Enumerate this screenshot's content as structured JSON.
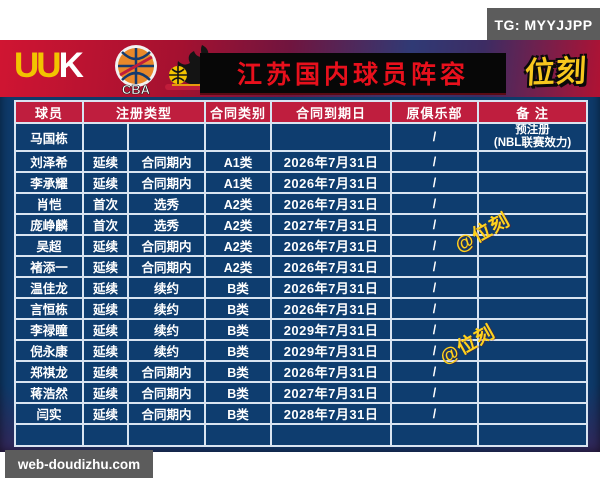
{
  "badges": {
    "telegram": "TG: MYYJJPP",
    "site": "web-doudizhu.com"
  },
  "header": {
    "uuk_logo_first": "UU",
    "uuk_logo_second": "K",
    "cba_logo": "CBA",
    "title": "江苏国内球员阵容",
    "weike_logo": "位刻"
  },
  "watermarks": [
    "@位刻",
    "@位刻"
  ],
  "table": {
    "headers": [
      "球员",
      "注册类型",
      "合同类别",
      "合同到期日",
      "原俱乐部",
      "备 注"
    ],
    "rows": [
      {
        "name": "马国栋",
        "reg_status": "",
        "reg_detail": "",
        "category": "",
        "expiry": "",
        "club": "/",
        "remark": "预注册\n(NBL联赛效力)"
      },
      {
        "name": "刘泽希",
        "reg_status": "延续",
        "reg_detail": "合同期内",
        "category": "A1类",
        "expiry": "2026年7月31日",
        "club": "/",
        "remark": ""
      },
      {
        "name": "李承耀",
        "reg_status": "延续",
        "reg_detail": "合同期内",
        "category": "A1类",
        "expiry": "2026年7月31日",
        "club": "/",
        "remark": ""
      },
      {
        "name": "肖恺",
        "reg_status": "首次",
        "reg_detail": "选秀",
        "category": "A2类",
        "expiry": "2026年7月31日",
        "club": "/",
        "remark": ""
      },
      {
        "name": "庞峥麟",
        "reg_status": "首次",
        "reg_detail": "选秀",
        "category": "A2类",
        "expiry": "2027年7月31日",
        "club": "/",
        "remark": ""
      },
      {
        "name": "吴超",
        "reg_status": "延续",
        "reg_detail": "合同期内",
        "category": "A2类",
        "expiry": "2026年7月31日",
        "club": "/",
        "remark": ""
      },
      {
        "name": "褚添一",
        "reg_status": "延续",
        "reg_detail": "合同期内",
        "category": "A2类",
        "expiry": "2026年7月31日",
        "club": "/",
        "remark": ""
      },
      {
        "name": "温佳龙",
        "reg_status": "延续",
        "reg_detail": "续约",
        "category": "B类",
        "expiry": "2026年7月31日",
        "club": "/",
        "remark": ""
      },
      {
        "name": "言恒栋",
        "reg_status": "延续",
        "reg_detail": "续约",
        "category": "B类",
        "expiry": "2026年7月31日",
        "club": "/",
        "remark": ""
      },
      {
        "name": "李禄瞳",
        "reg_status": "延续",
        "reg_detail": "续约",
        "category": "B类",
        "expiry": "2029年7月31日",
        "club": "/",
        "remark": ""
      },
      {
        "name": "倪永康",
        "reg_status": "延续",
        "reg_detail": "续约",
        "category": "B类",
        "expiry": "2029年7月31日",
        "club": "/",
        "remark": ""
      },
      {
        "name": "郑祺龙",
        "reg_status": "延续",
        "reg_detail": "合同期内",
        "category": "B类",
        "expiry": "2026年7月31日",
        "club": "/",
        "remark": ""
      },
      {
        "name": "蒋浩然",
        "reg_status": "延续",
        "reg_detail": "合同期内",
        "category": "B类",
        "expiry": "2027年7月31日",
        "club": "/",
        "remark": ""
      },
      {
        "name": "闫实",
        "reg_status": "延续",
        "reg_detail": "合同期内",
        "category": "B类",
        "expiry": "2028年7月31日",
        "club": "/",
        "remark": ""
      },
      {
        "name": "",
        "reg_status": "",
        "reg_detail": "",
        "category": "",
        "expiry": "",
        "club": "",
        "remark": ""
      }
    ]
  },
  "colors": {
    "header_red": "#bf1e3e",
    "table_blue": "#0e3d6f",
    "banner_black": "#070707",
    "title_red": "#e8101c",
    "logo_yellow": "#f7c71e",
    "watermark_yellow": "#ffd21c",
    "badge_gray": "#5c5c5c"
  }
}
